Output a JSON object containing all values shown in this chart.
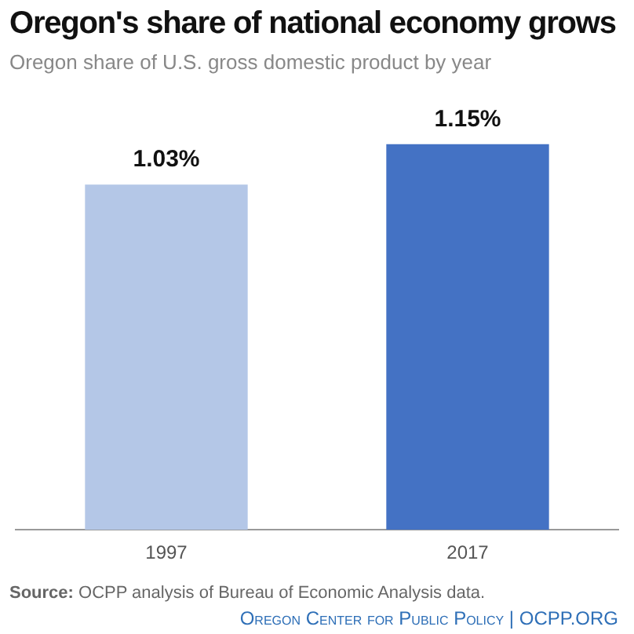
{
  "chart_data": {
    "type": "bar",
    "title": "Oregon's share of national economy grows",
    "subtitle": "Oregon share of U.S. gross domestic product by year",
    "categories": [
      "1997",
      "2017"
    ],
    "values": [
      1.03,
      1.15
    ],
    "colors": [
      "#b4c7e7",
      "#4472c4"
    ],
    "value_labels": [
      "1.03%",
      "1.15%"
    ],
    "grid": false,
    "legend": false,
    "annotations": [
      "Source: OCPP analysis of Bureau of Economic Analysis data.",
      "Oregon Center for Public Policy | OCPP.ORG"
    ]
  }
}
